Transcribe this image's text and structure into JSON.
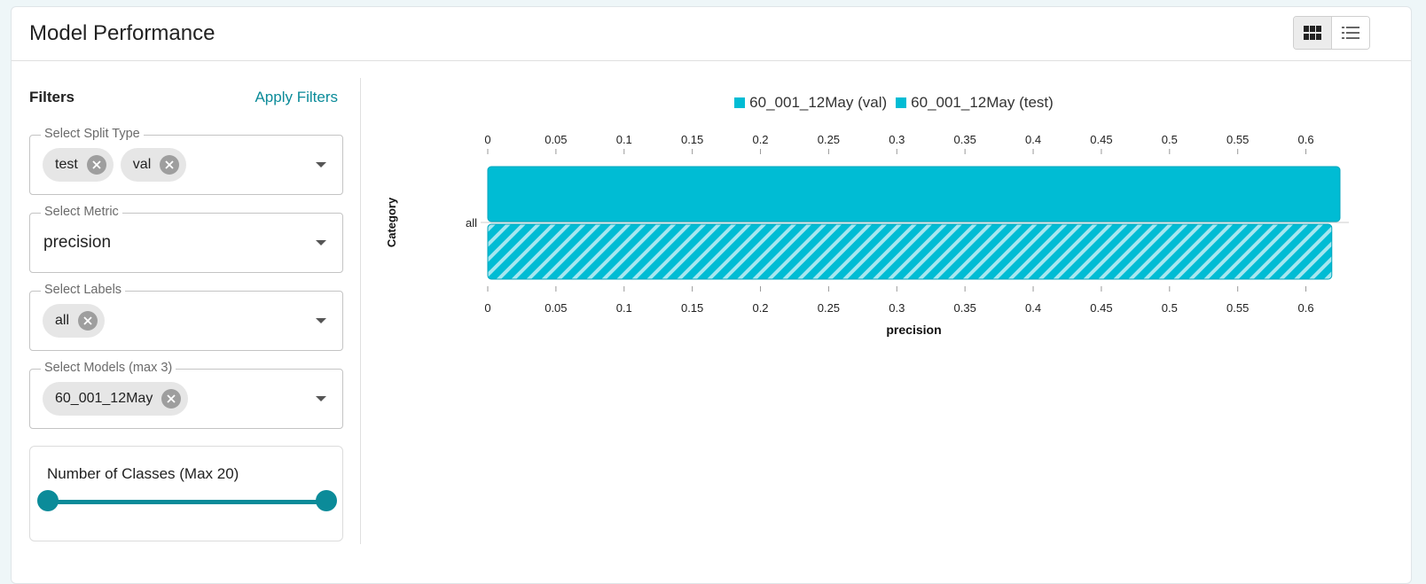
{
  "header": {
    "title": "Model Performance",
    "view_toggle": [
      "grid-view",
      "list-view"
    ]
  },
  "filters": {
    "title": "Filters",
    "apply_label": "Apply Filters",
    "split_type": {
      "label": "Select Split Type",
      "chips": [
        "test",
        "val"
      ]
    },
    "metric": {
      "label": "Select Metric",
      "value": "precision"
    },
    "labels": {
      "label": "Select Labels",
      "chips": [
        "all"
      ]
    },
    "models": {
      "label": "Select Models (max 3)",
      "chips": [
        "60_001_12May"
      ]
    },
    "classes": {
      "label": "Number of Classes (Max 20)",
      "range": [
        0,
        1
      ]
    }
  },
  "colors": {
    "accent": "#0b8b99",
    "bar": "#00bcd4",
    "bar_dark": "#00a6bd"
  },
  "chart_data": {
    "type": "bar",
    "orientation": "horizontal",
    "categories": [
      "all"
    ],
    "series": [
      {
        "name": "60_001_12May (val)",
        "values": [
          0.625
        ],
        "pattern": "solid"
      },
      {
        "name": "60_001_12May (test)",
        "values": [
          0.619
        ],
        "pattern": "striped"
      }
    ],
    "xlabel": "precision",
    "ylabel": "Category",
    "xlim": [
      0,
      0.625
    ],
    "ticks": [
      "0",
      "0.05",
      "0.1",
      "0.15",
      "0.2",
      "0.25",
      "0.3",
      "0.35",
      "0.4",
      "0.45",
      "0.5",
      "0.55",
      "0.6"
    ],
    "legend": "top-center"
  }
}
